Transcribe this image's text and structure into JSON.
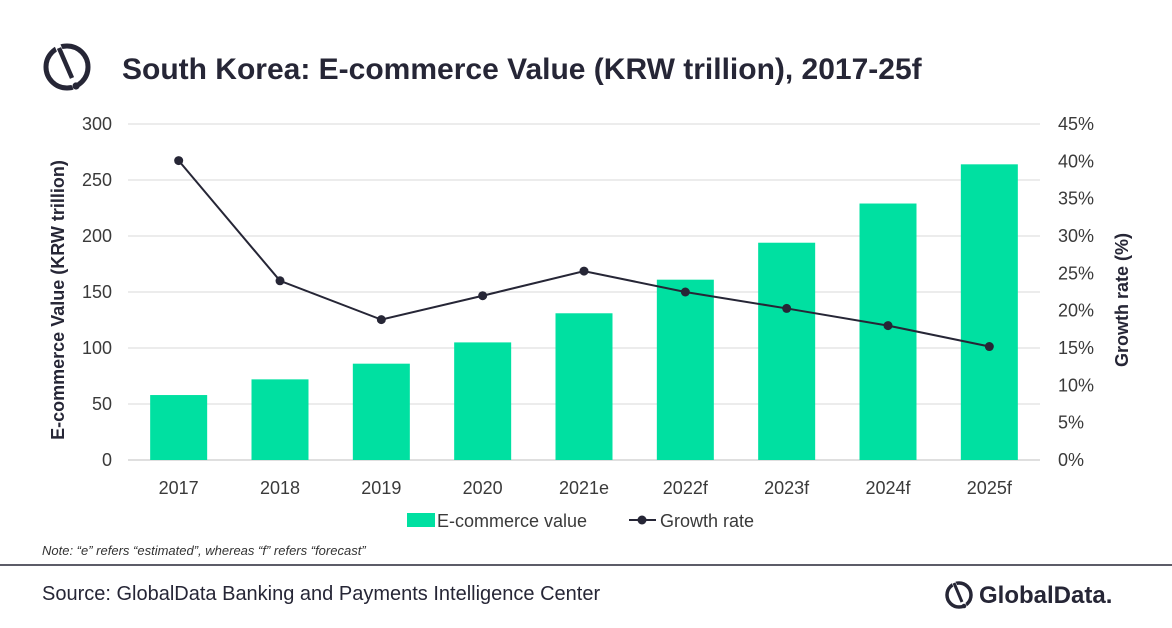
{
  "title": "South Korea: E-commerce Value (KRW trillion), 2017-25f",
  "note": "Note: “e” refers “estimated”, whereas “f” refers “forecast”",
  "source": "Source: GlobalData Banking and Payments Intelligence Center",
  "brand": "GlobalData.",
  "colors": {
    "bar": "#00E0A1",
    "line": "#262636",
    "divider": "#262636"
  },
  "chart_data": {
    "type": "bar",
    "categories": [
      "2017",
      "2018",
      "2019",
      "2020",
      "2021e",
      "2022f",
      "2023f",
      "2024f",
      "2025f"
    ],
    "series": [
      {
        "name": "E-commerce value",
        "type": "bar",
        "axis": "left",
        "values": [
          58,
          72,
          86,
          105,
          131,
          161,
          194,
          229,
          264
        ]
      },
      {
        "name": "Growth rate",
        "type": "line",
        "axis": "right",
        "values": [
          40.1,
          24.0,
          18.8,
          22.0,
          25.3,
          22.5,
          20.3,
          18.0,
          15.2
        ]
      }
    ],
    "ylabel": "E-commerce Value (KRW trillion)",
    "ylabel_right": "Growth rate (%)",
    "ylim": [
      0,
      300
    ],
    "ylim_right": [
      0,
      45
    ],
    "yticks": [
      "0",
      "50",
      "100",
      "150",
      "200",
      "250",
      "300"
    ],
    "yticks_right": [
      "0%",
      "5%",
      "10%",
      "15%",
      "20%",
      "25%",
      "30%",
      "35%",
      "40%",
      "45%"
    ],
    "grid": true,
    "legend": "bottom-center"
  }
}
